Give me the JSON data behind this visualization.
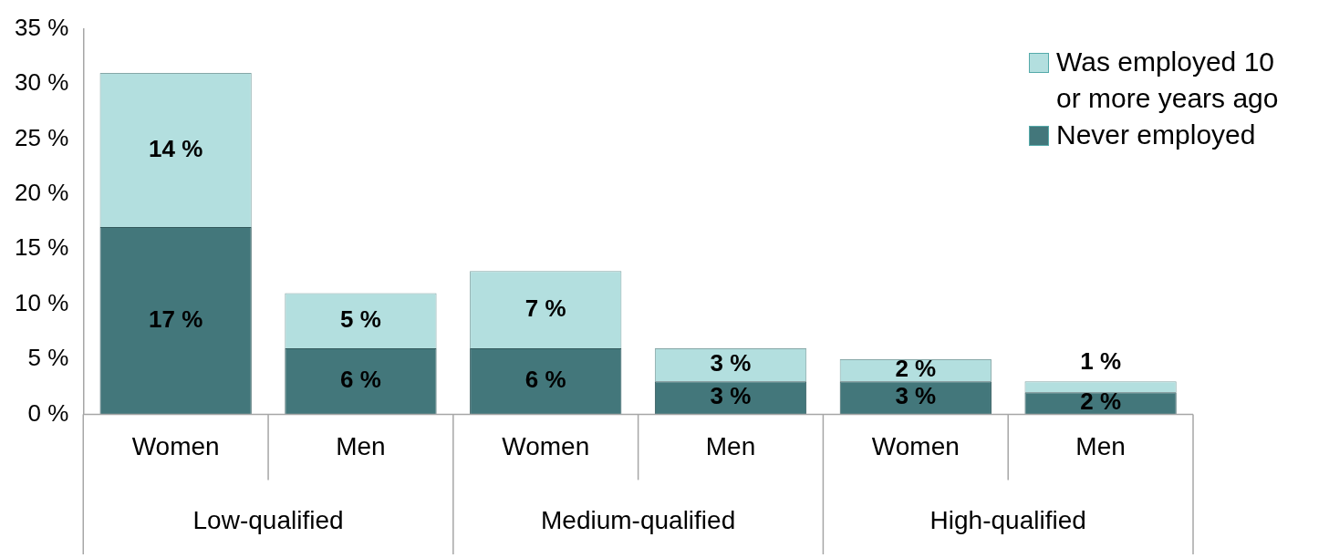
{
  "chart_data": {
    "type": "bar",
    "stacked": true,
    "categories": [
      "Women",
      "Men",
      "Women",
      "Men",
      "Women",
      "Men"
    ],
    "annotations": [
      "Low-qualified",
      "Medium-qualified",
      "High-qualified"
    ],
    "series": [
      {
        "name": "Never employed",
        "color": "#43777b",
        "values": [
          17,
          6,
          6,
          3,
          3,
          2
        ],
        "value_labels": [
          "17 %",
          "6 %",
          "6 %",
          "3 %",
          "3 %",
          "2 %"
        ]
      },
      {
        "name": "Was employed 10 or more years ago",
        "color": "#b3dfdf",
        "values": [
          14,
          5,
          7,
          3,
          2,
          1
        ],
        "value_labels": [
          "14 %",
          "5 %",
          "7 %",
          "3 %",
          "2 %",
          "1 %"
        ]
      }
    ],
    "ylim": [
      0,
      35
    ],
    "yticks": [
      {
        "value": 0,
        "label": "0 %"
      },
      {
        "value": 5,
        "label": "5 %"
      },
      {
        "value": 10,
        "label": "10 %"
      },
      {
        "value": 15,
        "label": "15 %"
      },
      {
        "value": 20,
        "label": "20 %"
      },
      {
        "value": 25,
        "label": "25 %"
      },
      {
        "value": 30,
        "label": "30 %"
      },
      {
        "value": 35,
        "label": "35 %"
      }
    ],
    "grid": false,
    "legend": "top right"
  }
}
